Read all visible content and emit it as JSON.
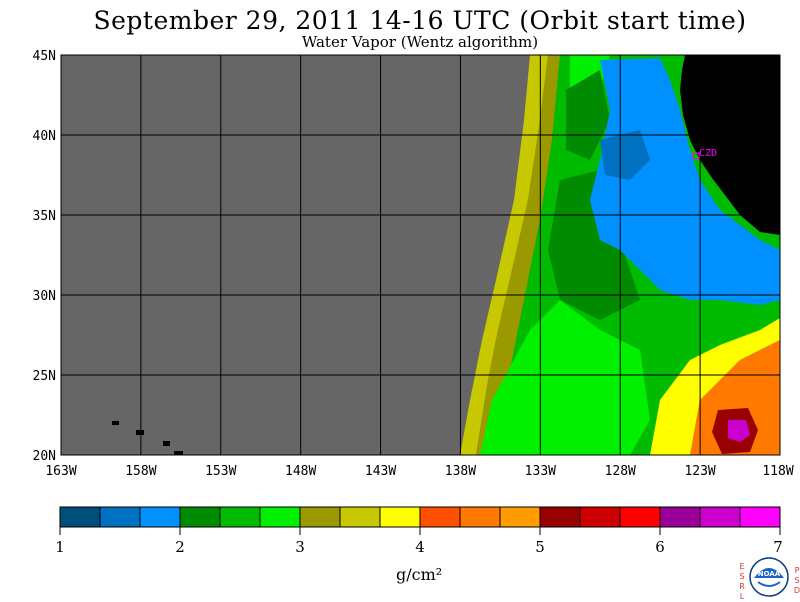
{
  "header": {
    "title": "September 29, 2011  14-16 UTC  (Orbit start time)",
    "subtitle": "Water Vapor (Wentz algorithm)"
  },
  "map": {
    "lat_labels": [
      "45N",
      "40N",
      "35N",
      "30N",
      "25N",
      "20N"
    ],
    "lon_labels": [
      "163W",
      "158W",
      "153W",
      "148W",
      "143W",
      "138W",
      "133W",
      "128W",
      "123W",
      "118W"
    ],
    "marker_label": "CZD",
    "colors": {
      "no_data": "#666666",
      "land": "#000000"
    }
  },
  "colorbar": {
    "ticks": [
      "1",
      "2",
      "3",
      "4",
      "5",
      "6",
      "7"
    ],
    "colors": [
      "#004f7a",
      "#0070c0",
      "#0090ff",
      "#008b00",
      "#00bb00",
      "#00f000",
      "#9a9a00",
      "#c8c800",
      "#ffff00",
      "#ff5000",
      "#ff7800",
      "#ff9d00",
      "#990000",
      "#cc0000",
      "#ff0000",
      "#9a0099",
      "#cc00cc",
      "#ff00ff"
    ],
    "units": "g/cm²"
  },
  "logo": {
    "left_letters": "ESRL",
    "right_letters": "PSD",
    "center_text": "NOAA"
  }
}
